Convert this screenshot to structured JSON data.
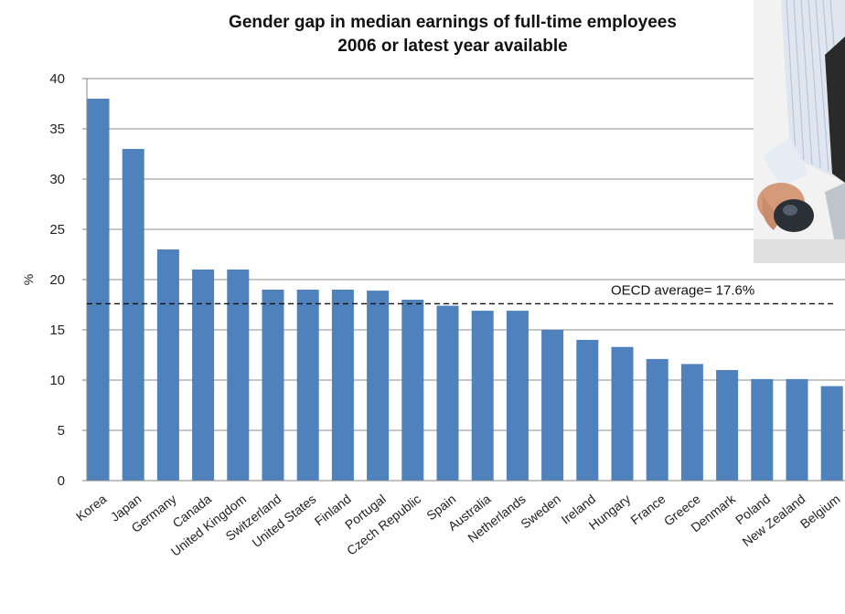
{
  "chart_data": {
    "type": "bar",
    "title": "Gender gap in median earnings of full-time employees",
    "subtitle": "2006 or latest year available",
    "ylabel": "%",
    "xlabel": "",
    "ylim": [
      0,
      40
    ],
    "yticks": [
      0,
      5,
      10,
      15,
      20,
      25,
      30,
      35,
      40
    ],
    "grid": true,
    "bar_color": "#4f81bd",
    "categories": [
      "Korea",
      "Japan",
      "Germany",
      "Canada",
      "United Kingdom",
      "Switzerland",
      "United States",
      "Finland",
      "Portugal",
      "Czech Republic",
      "Spain",
      "Australia",
      "Netherlands",
      "Sweden",
      "Ireland",
      "Hungary",
      "France",
      "Greece",
      "Denmark",
      "Poland",
      "New Zealand",
      "Belgium"
    ],
    "values": [
      38,
      33,
      23,
      21,
      21,
      19,
      19,
      19,
      18.9,
      18,
      17.4,
      16.9,
      16.9,
      15,
      14,
      13.3,
      12.1,
      11.6,
      11,
      10.1,
      10.1,
      9.4
    ],
    "reference_line": {
      "value": 17.6,
      "label": "OECD average= 17.6%",
      "style": "dashed"
    }
  },
  "photo": {
    "icon": "person-at-computer-mouse-photo"
  }
}
